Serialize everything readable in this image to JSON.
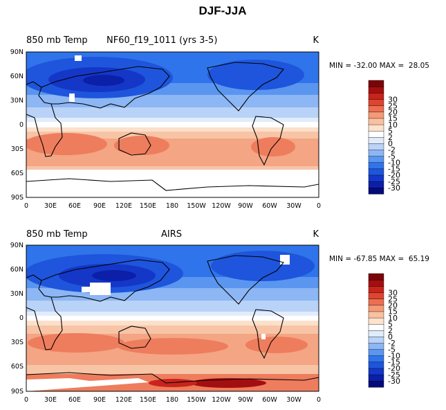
{
  "figure_title": "DJF-JJA",
  "colorbar": {
    "colors": [
      "#050a7a",
      "#0c1fa8",
      "#1437c8",
      "#1e55dc",
      "#2f74ea",
      "#5a96f0",
      "#8cb6f4",
      "#bcd3f8",
      "#e0ecfb",
      "#ffffff",
      "#fde2cc",
      "#f9c1a0",
      "#f49a78",
      "#ec6f52",
      "#de4531",
      "#c8241c",
      "#a30f10",
      "#7a0508"
    ],
    "levels": [
      "-30",
      "-25",
      "-20",
      "-15",
      "-10",
      "-5",
      "-2",
      "0",
      "2",
      "5",
      "10",
      "15",
      "20",
      "25",
      "30"
    ]
  },
  "chart_data": [
    {
      "type": "heatmap",
      "title_left": "850 mb Temp",
      "title_center": "NF60_f19_1011 (yrs 3-5)",
      "units": "K",
      "stats_label": "MIN = -32.00 MAX =  28.05",
      "min": -32.0,
      "max": 28.05,
      "x_ticks": [
        "0",
        "30E",
        "60E",
        "90E",
        "120E",
        "150E",
        "180",
        "150W",
        "120W",
        "90W",
        "60W",
        "30W",
        "0"
      ],
      "y_ticks": [
        "90N",
        "60N",
        "30N",
        "0",
        "30S",
        "60S",
        "90S"
      ],
      "xlim": [
        0,
        360
      ],
      "ylim": [
        -90,
        90
      ]
    },
    {
      "type": "heatmap",
      "title_left": "850 mb Temp",
      "title_center": "AIRS",
      "units": "K",
      "stats_label": "MIN = -67.85 MAX =  65.19",
      "min": -67.85,
      "max": 65.19,
      "x_ticks": [
        "0",
        "30E",
        "60E",
        "90E",
        "120E",
        "150E",
        "180",
        "150W",
        "120W",
        "90W",
        "60W",
        "30W",
        "0"
      ],
      "y_ticks": [
        "90N",
        "60N",
        "30N",
        "0",
        "30S",
        "60S",
        "90S"
      ],
      "xlim": [
        0,
        360
      ],
      "ylim": [
        -90,
        90
      ]
    }
  ]
}
